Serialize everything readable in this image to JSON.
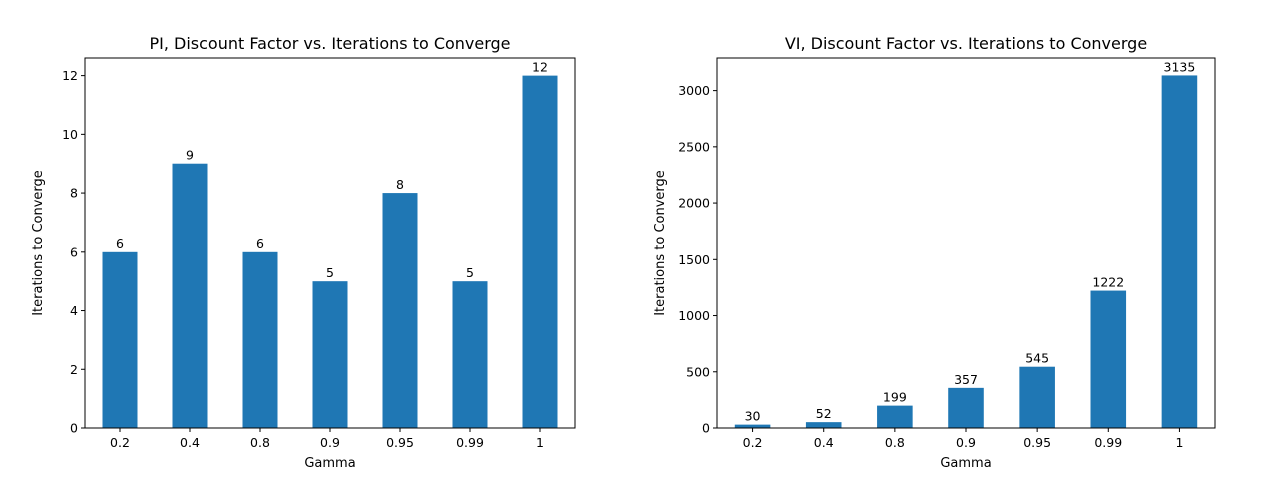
{
  "chart_data": [
    {
      "type": "bar",
      "title": "PI, Discount Factor vs. Iterations to Converge",
      "xlabel": "Gamma",
      "ylabel": "Iterations to Converge",
      "categories": [
        "0.2",
        "0.4",
        "0.8",
        "0.9",
        "0.95",
        "0.99",
        "1"
      ],
      "values": [
        6,
        9,
        6,
        5,
        8,
        5,
        12
      ],
      "ylim": [
        0,
        12.6
      ],
      "yticks": [
        0,
        2,
        4,
        6,
        8,
        10,
        12
      ],
      "color": "#1f77b4",
      "grid": false,
      "data_labels": true
    },
    {
      "type": "bar",
      "title": "VI, Discount Factor vs. Iterations to Converge",
      "xlabel": "Gamma",
      "ylabel": "Iterations to Converge",
      "categories": [
        "0.2",
        "0.4",
        "0.8",
        "0.9",
        "0.95",
        "0.99",
        "1"
      ],
      "values": [
        30,
        52,
        199,
        357,
        545,
        1222,
        3135
      ],
      "ylim": [
        0,
        3290
      ],
      "yticks": [
        0,
        500,
        1000,
        1500,
        2000,
        2500,
        3000
      ],
      "color": "#1f77b4",
      "grid": false,
      "data_labels": true
    }
  ]
}
